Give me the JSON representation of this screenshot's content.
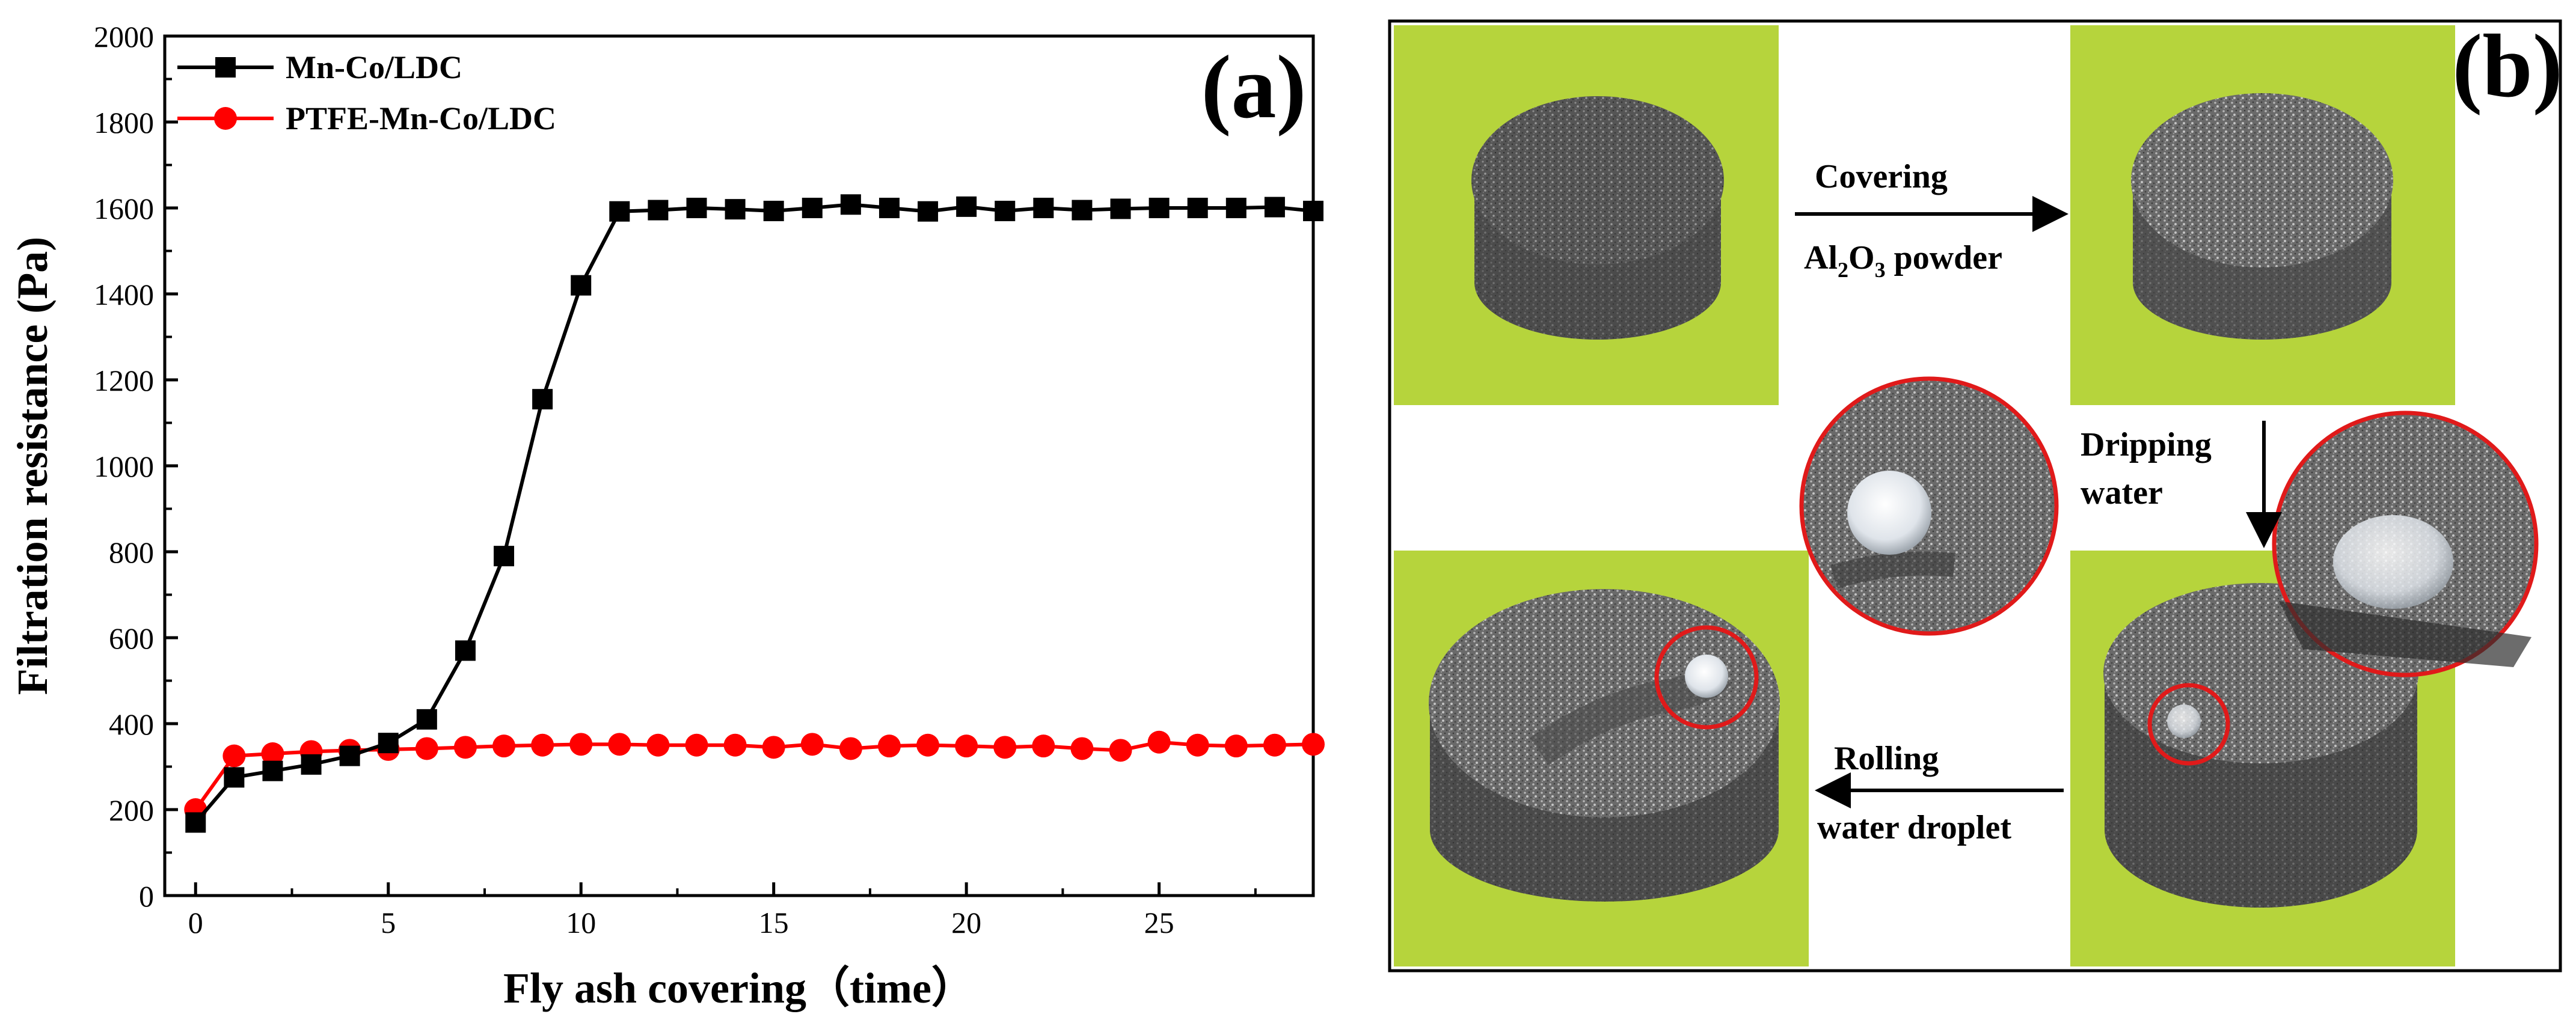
{
  "chart_data": {
    "type": "line",
    "panel_label": "(a)",
    "xlabel": "Fly ash covering（time）",
    "ylabel": "Filtration resistance (Pa)",
    "xlim": [
      -0.8,
      29
    ],
    "ylim": [
      0,
      2000
    ],
    "xticks": [
      0,
      5,
      10,
      15,
      20,
      25
    ],
    "xtick_labels": [
      "0",
      "5",
      "10",
      "15",
      "20",
      "25"
    ],
    "yticks": [
      0,
      200,
      400,
      600,
      800,
      1000,
      1200,
      1400,
      1600,
      1800,
      2000
    ],
    "ytick_labels": [
      "0",
      "200",
      "400",
      "600",
      "800",
      "1000",
      "1200",
      "1400",
      "1600",
      "1800",
      "2000"
    ],
    "legend_position": "top-left",
    "x": [
      0,
      1,
      2,
      3,
      4,
      5,
      6,
      7,
      8,
      9,
      10,
      11,
      12,
      13,
      14,
      15,
      16,
      17,
      18,
      19,
      20,
      21,
      22,
      23,
      24,
      25,
      26,
      27,
      28,
      29
    ],
    "series": [
      {
        "name": "Mn-Co/LDC",
        "color": "#000000",
        "marker": "square",
        "values": [
          170,
          275,
          290,
          305,
          325,
          355,
          410,
          570,
          790,
          1155,
          1420,
          1592,
          1595,
          1600,
          1597,
          1593,
          1600,
          1608,
          1600,
          1592,
          1603,
          1593,
          1600,
          1595,
          1598,
          1600,
          1600,
          1600,
          1602,
          1593
        ]
      },
      {
        "name": "PTFE-Mn-Co/LDC",
        "color": "#ff0000",
        "marker": "circle",
        "values": [
          200,
          325,
          330,
          335,
          338,
          340,
          342,
          345,
          348,
          350,
          352,
          352,
          350,
          350,
          350,
          345,
          352,
          342,
          348,
          350,
          348,
          345,
          348,
          342,
          338,
          357,
          350,
          348,
          350,
          352
        ]
      }
    ]
  },
  "panel_b": {
    "panel_label": "(b)",
    "covering_label": "Covering",
    "al_prefix": "Al",
    "al_sub": "2",
    "o_prefix": "O",
    "o_sub": "3",
    "powder_suffix": " powder",
    "dripping_label": "Dripping",
    "water_label": "water",
    "rolling_label": "Rolling",
    "droplet_label": "water droplet"
  },
  "colors": {
    "photo_background": "#b6d43c",
    "sample": "#4f4f4f",
    "highlight_circle": "#e01a1a",
    "arrow": "#000000"
  }
}
